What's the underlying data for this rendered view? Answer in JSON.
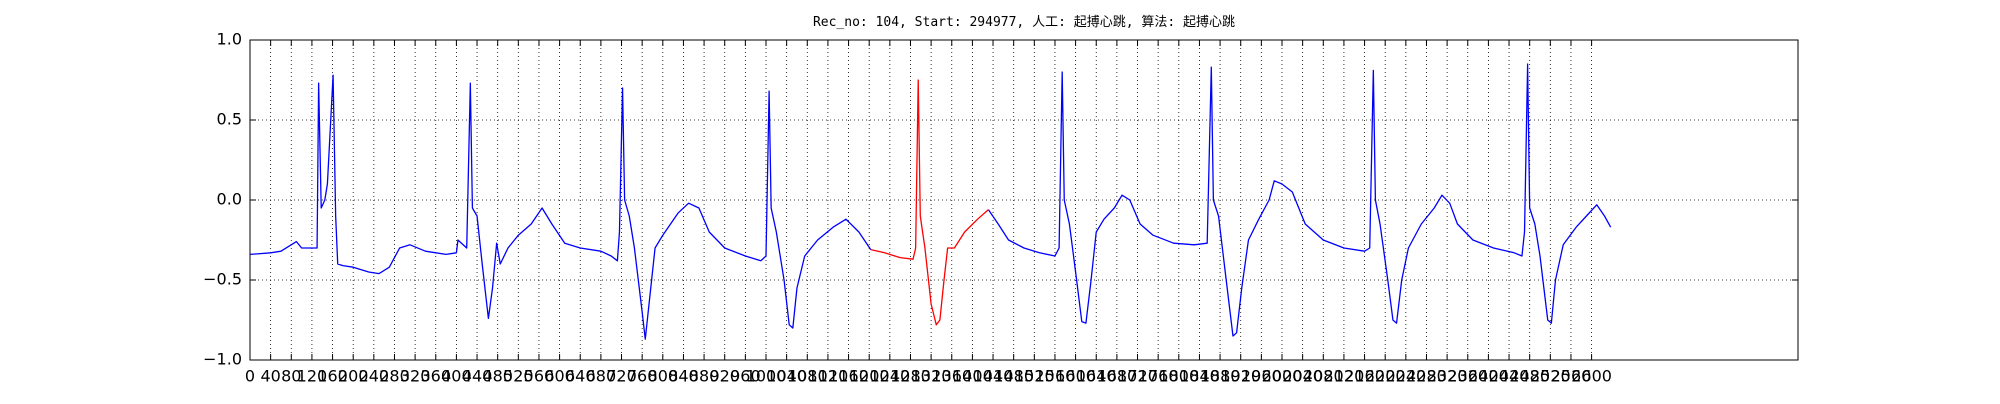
{
  "chart_data": {
    "type": "line",
    "title": "Rec_no: 104, Start: 294977, 人工: 起搏心跳, 算法: 起搏心跳",
    "x": [
      0,
      40,
      60,
      90,
      100,
      125,
      130,
      133,
      138,
      145,
      150,
      161,
      166,
      170,
      180,
      200,
      230,
      250,
      270,
      290,
      310,
      340,
      380,
      400,
      403,
      420,
      427,
      431,
      440,
      450,
      462,
      470,
      478,
      485,
      500,
      520,
      545,
      566,
      585,
      610,
      640,
      680,
      700,
      712,
      716,
      722,
      726,
      735,
      745,
      760,
      766,
      775,
      785,
      800,
      830,
      850,
      870,
      890,
      920,
      960,
      990,
      1000,
      1006,
      1010,
      1020,
      1035,
      1045,
      1052,
      1060,
      1075,
      1100,
      1130,
      1155,
      1180,
      1203,
      1230,
      1260,
      1285,
      1290,
      1295,
      1299,
      1308,
      1320,
      1330,
      1337,
      1345,
      1352,
      1365,
      1385,
      1410,
      1431,
      1450,
      1470,
      1500,
      1530,
      1560,
      1568,
      1574,
      1578,
      1588,
      1600,
      1612,
      1620,
      1630,
      1640,
      1655,
      1675,
      1690,
      1705,
      1725,
      1750,
      1790,
      1830,
      1855,
      1863,
      1867,
      1877,
      1890,
      1905,
      1912,
      1922,
      1935,
      1955,
      1975,
      1985,
      2000,
      2020,
      2045,
      2080,
      2120,
      2160,
      2170,
      2177,
      2181,
      2190,
      2205,
      2215,
      2222,
      2232,
      2245,
      2270,
      2295,
      2310,
      2325,
      2340,
      2370,
      2410,
      2450,
      2465,
      2470,
      2476,
      2480,
      2490,
      2500,
      2515,
      2522,
      2530,
      2545,
      2570,
      2590,
      2610,
      2625,
      2637
    ],
    "series": [
      {
        "color": "#0000ff",
        "values": [
          -0.34,
          -0.33,
          -0.32,
          -0.26,
          -0.3,
          -0.3,
          -0.3,
          0.73,
          -0.05,
          0.0,
          0.1,
          0.78,
          -0.1,
          -0.4,
          -0.41,
          -0.42,
          -0.45,
          -0.46,
          -0.42,
          -0.3,
          -0.28,
          -0.32,
          -0.34,
          -0.33,
          -0.25,
          -0.3,
          0.73,
          -0.05,
          -0.1,
          -0.4,
          -0.74,
          -0.55,
          -0.27,
          -0.4,
          -0.3,
          -0.22,
          -0.15,
          -0.05,
          -0.15,
          -0.27,
          -0.3,
          -0.32,
          -0.35,
          -0.38,
          -0.2,
          0.7,
          0.0,
          -0.1,
          -0.3,
          -0.7,
          -0.87,
          -0.6,
          -0.3,
          -0.22,
          -0.08,
          -0.02,
          -0.05,
          -0.2,
          -0.3,
          -0.35,
          -0.38,
          -0.35,
          0.68,
          -0.05,
          -0.2,
          -0.5,
          -0.78,
          -0.8,
          -0.55,
          -0.35,
          -0.25,
          -0.17,
          -0.12,
          -0.2,
          -0.31,
          null,
          null,
          null,
          null,
          null,
          null,
          null,
          null,
          null,
          null,
          null,
          null,
          null,
          null,
          null,
          -0.06,
          -0.15,
          -0.25,
          -0.3,
          -0.33,
          -0.35,
          -0.3,
          0.8,
          0.0,
          -0.15,
          -0.45,
          -0.76,
          -0.77,
          -0.5,
          -0.2,
          -0.12,
          -0.05,
          0.03,
          0.0,
          -0.15,
          -0.22,
          -0.27,
          -0.28,
          -0.27,
          0.83,
          0.0,
          -0.1,
          -0.45,
          -0.85,
          -0.83,
          -0.55,
          -0.25,
          -0.12,
          0.0,
          0.12,
          0.1,
          0.05,
          -0.15,
          -0.25,
          -0.3,
          -0.32,
          -0.3,
          0.81,
          0.0,
          -0.15,
          -0.5,
          -0.75,
          -0.77,
          -0.5,
          -0.3,
          -0.15,
          -0.05,
          0.03,
          -0.02,
          -0.15,
          -0.25,
          -0.3,
          -0.33,
          -0.35,
          -0.2,
          0.85,
          -0.05,
          -0.15,
          -0.35,
          -0.75,
          -0.77,
          -0.5,
          -0.28,
          -0.17,
          -0.1,
          -0.03,
          -0.1,
          -0.17
        ]
      },
      {
        "color": "#ff0000",
        "values": [
          null,
          null,
          null,
          null,
          null,
          null,
          null,
          null,
          null,
          null,
          null,
          null,
          null,
          null,
          null,
          null,
          null,
          null,
          null,
          null,
          null,
          null,
          null,
          null,
          null,
          null,
          null,
          null,
          null,
          null,
          null,
          null,
          null,
          null,
          null,
          null,
          null,
          null,
          null,
          null,
          null,
          null,
          null,
          null,
          null,
          null,
          null,
          null,
          null,
          null,
          null,
          null,
          null,
          null,
          null,
          null,
          null,
          null,
          null,
          null,
          null,
          null,
          null,
          null,
          null,
          null,
          null,
          null,
          null,
          null,
          null,
          null,
          null,
          null,
          -0.31,
          -0.33,
          -0.36,
          -0.37,
          -0.3,
          0.75,
          -0.1,
          -0.3,
          -0.65,
          -0.78,
          -0.75,
          -0.5,
          -0.3,
          -0.3,
          -0.2,
          -0.12,
          -0.06,
          null,
          null,
          null,
          null,
          null,
          null,
          null,
          null,
          null,
          null,
          null,
          null,
          null,
          null,
          null,
          null,
          null,
          null,
          null,
          null,
          null,
          null,
          null,
          null,
          null,
          null,
          null,
          null,
          null,
          null,
          null,
          null,
          null,
          null,
          null,
          null,
          null,
          null,
          null,
          null,
          null,
          null,
          null,
          null,
          null,
          null,
          null,
          null,
          null,
          null,
          null,
          null,
          null,
          null,
          null,
          null,
          null,
          null,
          null,
          null,
          null,
          null,
          null,
          null,
          null,
          null,
          null,
          null,
          null,
          null,
          null,
          null
        ]
      }
    ],
    "xlim": [
      0,
      3000
    ],
    "ylim": [
      -1,
      1
    ],
    "xticks": [
      0,
      40,
      80,
      120,
      160,
      200,
      240,
      280,
      320,
      360,
      400,
      440,
      480,
      520,
      560,
      600,
      640,
      680,
      720,
      760,
      800,
      840,
      880,
      920,
      960,
      1000,
      1040,
      1080,
      1120,
      1160,
      1200,
      1240,
      1280,
      1320,
      1360,
      1400,
      1440,
      1480,
      1520,
      1560,
      1600,
      1640,
      1680,
      1720,
      1760,
      1800,
      1840,
      1880,
      1920,
      1960,
      2000,
      2040,
      2080,
      2120,
      2160,
      2200,
      2240,
      2280,
      2320,
      2360,
      2400,
      2440,
      2480,
      2520,
      2560,
      2600
    ],
    "yticks": [
      {
        "value": -1,
        "label": "−1.0"
      },
      {
        "value": -0.5,
        "label": "−0.5"
      },
      {
        "value": 0,
        "label": "0.0"
      },
      {
        "value": 0.5,
        "label": "0.5"
      },
      {
        "value": 1,
        "label": "1.0"
      }
    ],
    "grid": true
  }
}
